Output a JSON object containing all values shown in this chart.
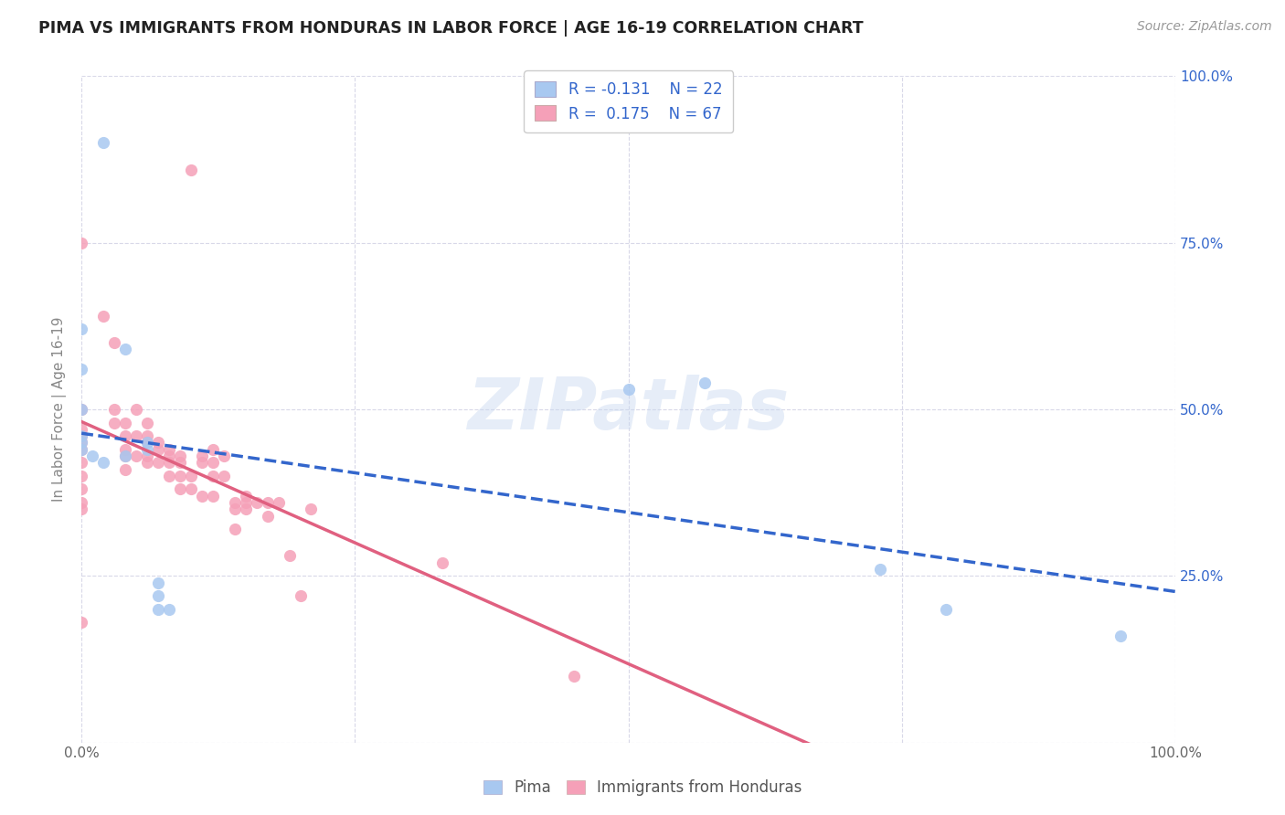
{
  "title": "PIMA VS IMMIGRANTS FROM HONDURAS IN LABOR FORCE | AGE 16-19 CORRELATION CHART",
  "source": "Source: ZipAtlas.com",
  "ylabel": "In Labor Force | Age 16-19",
  "xlim": [
    0.0,
    1.0
  ],
  "ylim": [
    0.0,
    1.0
  ],
  "background_color": "#ffffff",
  "grid_color": "#d8d8e8",
  "watermark": "ZIPatlas",
  "pima_color": "#a8c8f0",
  "honduras_color": "#f5a0b8",
  "pima_line_color": "#3366cc",
  "honduras_line_color": "#e06080",
  "pima_R": -0.131,
  "pima_N": 22,
  "honduras_R": 0.175,
  "honduras_N": 67,
  "legend_text_color": "#3366cc",
  "pima_points_x": [
    0.02,
    0.0,
    0.0,
    0.0,
    0.0,
    0.0,
    0.0,
    0.01,
    0.02,
    0.04,
    0.04,
    0.06,
    0.06,
    0.07,
    0.07,
    0.07,
    0.08,
    0.5,
    0.57,
    0.73,
    0.79,
    0.95
  ],
  "pima_points_y": [
    0.9,
    0.62,
    0.56,
    0.5,
    0.46,
    0.45,
    0.44,
    0.43,
    0.42,
    0.59,
    0.43,
    0.45,
    0.44,
    0.2,
    0.22,
    0.24,
    0.2,
    0.53,
    0.54,
    0.26,
    0.2,
    0.16
  ],
  "honduras_points_x": [
    0.0,
    0.0,
    0.0,
    0.0,
    0.0,
    0.0,
    0.0,
    0.0,
    0.0,
    0.0,
    0.0,
    0.0,
    0.02,
    0.03,
    0.03,
    0.03,
    0.04,
    0.04,
    0.04,
    0.04,
    0.04,
    0.05,
    0.05,
    0.05,
    0.06,
    0.06,
    0.06,
    0.06,
    0.06,
    0.07,
    0.07,
    0.07,
    0.08,
    0.08,
    0.08,
    0.08,
    0.09,
    0.09,
    0.09,
    0.09,
    0.1,
    0.1,
    0.11,
    0.11,
    0.11,
    0.12,
    0.12,
    0.12,
    0.12,
    0.13,
    0.13,
    0.14,
    0.14,
    0.14,
    0.15,
    0.15,
    0.15,
    0.16,
    0.17,
    0.17,
    0.18,
    0.19,
    0.2,
    0.21,
    0.33,
    0.1,
    0.45
  ],
  "honduras_points_y": [
    0.75,
    0.5,
    0.47,
    0.46,
    0.45,
    0.44,
    0.42,
    0.4,
    0.38,
    0.36,
    0.35,
    0.18,
    0.64,
    0.6,
    0.5,
    0.48,
    0.48,
    0.46,
    0.44,
    0.43,
    0.41,
    0.5,
    0.46,
    0.43,
    0.48,
    0.46,
    0.45,
    0.43,
    0.42,
    0.45,
    0.44,
    0.42,
    0.44,
    0.43,
    0.42,
    0.4,
    0.43,
    0.42,
    0.4,
    0.38,
    0.4,
    0.38,
    0.43,
    0.42,
    0.37,
    0.44,
    0.42,
    0.4,
    0.37,
    0.43,
    0.4,
    0.36,
    0.35,
    0.32,
    0.37,
    0.36,
    0.35,
    0.36,
    0.36,
    0.34,
    0.36,
    0.28,
    0.22,
    0.35,
    0.27,
    0.86,
    0.1
  ]
}
